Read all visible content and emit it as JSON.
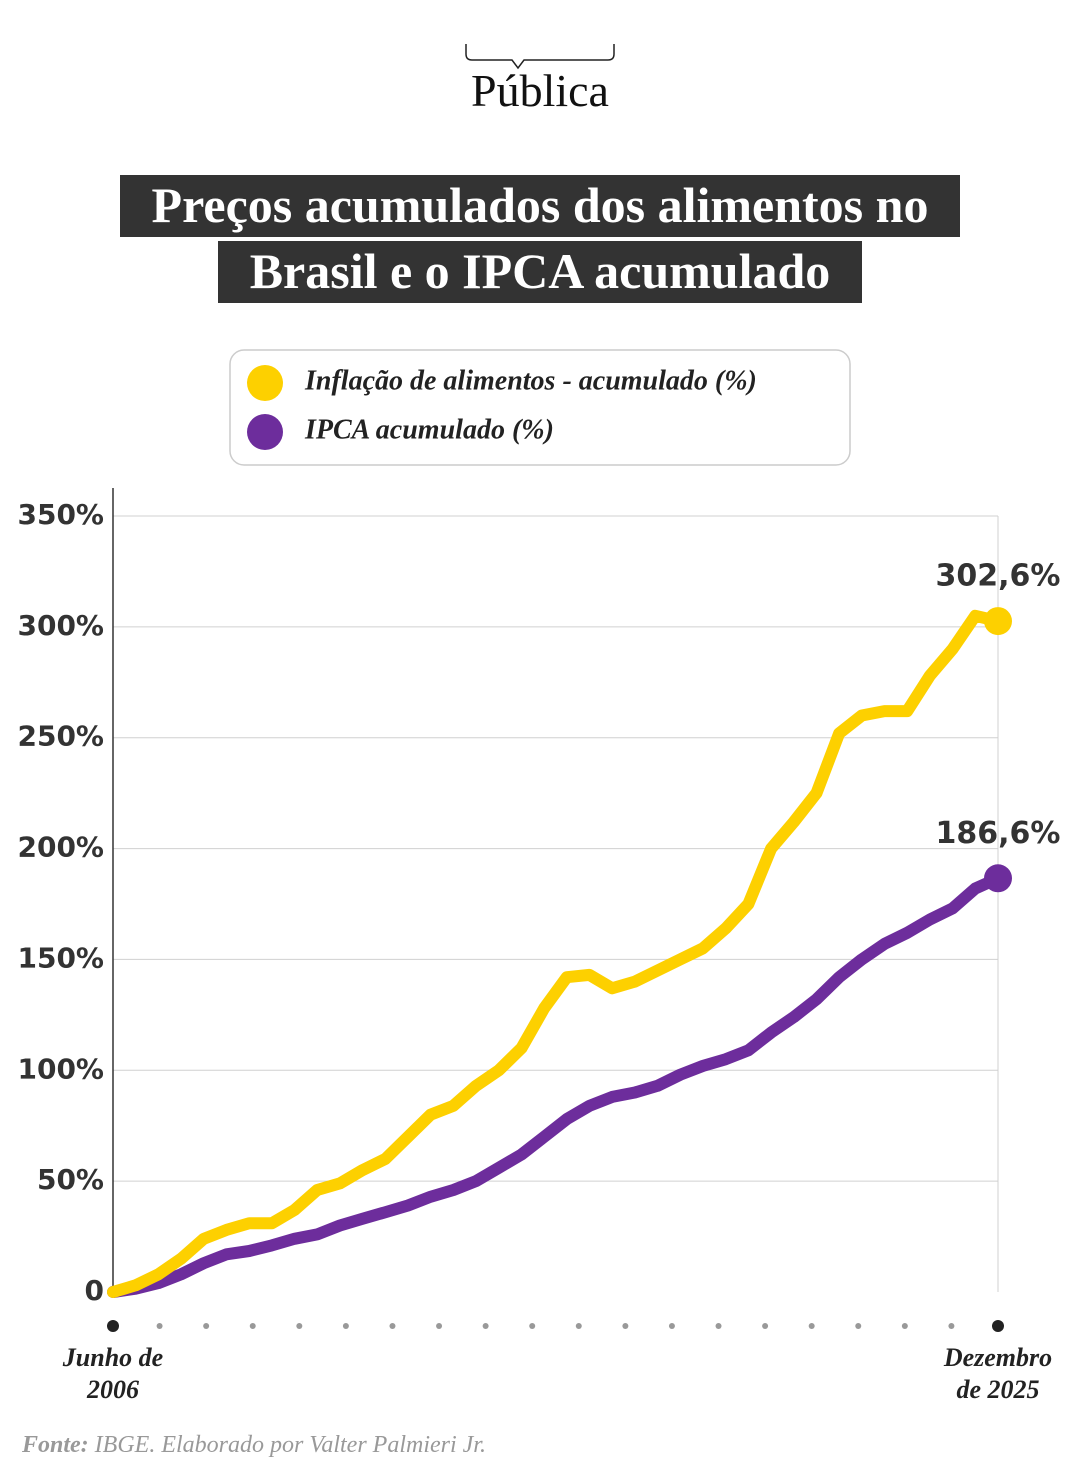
{
  "brand": "Pública",
  "chart_data": {
    "type": "line",
    "title": "Preços acumulados dos alimentos no Brasil e o IPCA acumulado",
    "categories": [
      "Junho de 2006",
      null,
      null,
      null,
      null,
      null,
      null,
      null,
      null,
      null,
      null,
      null,
      null,
      null,
      null,
      null,
      null,
      null,
      null,
      null,
      null,
      null,
      null,
      null,
      null,
      null,
      null,
      null,
      null,
      null,
      null,
      null,
      null,
      null,
      null,
      null,
      null,
      null,
      null,
      "Dezembro de 2025"
    ],
    "series": [
      {
        "name": "Inflação de alimentos - acumulado (%)",
        "color": "#fdd000",
        "values": [
          0,
          3,
          8,
          15,
          24,
          28,
          31,
          31,
          37,
          46,
          49,
          55,
          60,
          70,
          80,
          84,
          93,
          100,
          110,
          128,
          142,
          143,
          137,
          140,
          145,
          150,
          155,
          164,
          175,
          200,
          212,
          225,
          252,
          260,
          262,
          262,
          278,
          290,
          305,
          302.6
        ],
        "value_labels": [
          null,
          null,
          null,
          null,
          null,
          null,
          null,
          null,
          null,
          null,
          null,
          null,
          null,
          null,
          null,
          null,
          null,
          null,
          null,
          null,
          null,
          null,
          null,
          null,
          null,
          null,
          null,
          null,
          null,
          null,
          null,
          null,
          null,
          null,
          null,
          null,
          null,
          null,
          null,
          "302,6%"
        ]
      },
      {
        "name": "IPCA acumulado (%)",
        "color": "#6d2d9c",
        "values": [
          0,
          1.5,
          4,
          8,
          13,
          17,
          18.5,
          21,
          24,
          26,
          30,
          33,
          36,
          39,
          43,
          46,
          50,
          56,
          62,
          70,
          78,
          84,
          88,
          90,
          93,
          98,
          102,
          105,
          109,
          117,
          124,
          132,
          142,
          150,
          157,
          162,
          168,
          173,
          182,
          186.6
        ],
        "value_labels": [
          null,
          null,
          null,
          null,
          null,
          null,
          null,
          null,
          null,
          null,
          null,
          null,
          null,
          null,
          null,
          null,
          null,
          null,
          null,
          null,
          null,
          null,
          null,
          null,
          null,
          null,
          null,
          null,
          null,
          null,
          null,
          null,
          null,
          null,
          null,
          null,
          null,
          null,
          null,
          "186,6%"
        ]
      }
    ],
    "ylim": [
      0,
      350
    ],
    "yticks": [
      0,
      {
        "value": 50,
        "label": "50%"
      },
      {
        "value": 100,
        "label": "100%"
      },
      {
        "value": 150,
        "label": "150%"
      },
      {
        "value": 200,
        "label": "200%"
      },
      {
        "value": 250,
        "label": "250%"
      },
      {
        "value": 300,
        "label": "300%"
      },
      {
        "value": 350,
        "label": "350%"
      }
    ],
    "grid": true,
    "source_label": "Fonte:",
    "source": "IBGE. Elaborado por Valter Palmieri Jr."
  }
}
